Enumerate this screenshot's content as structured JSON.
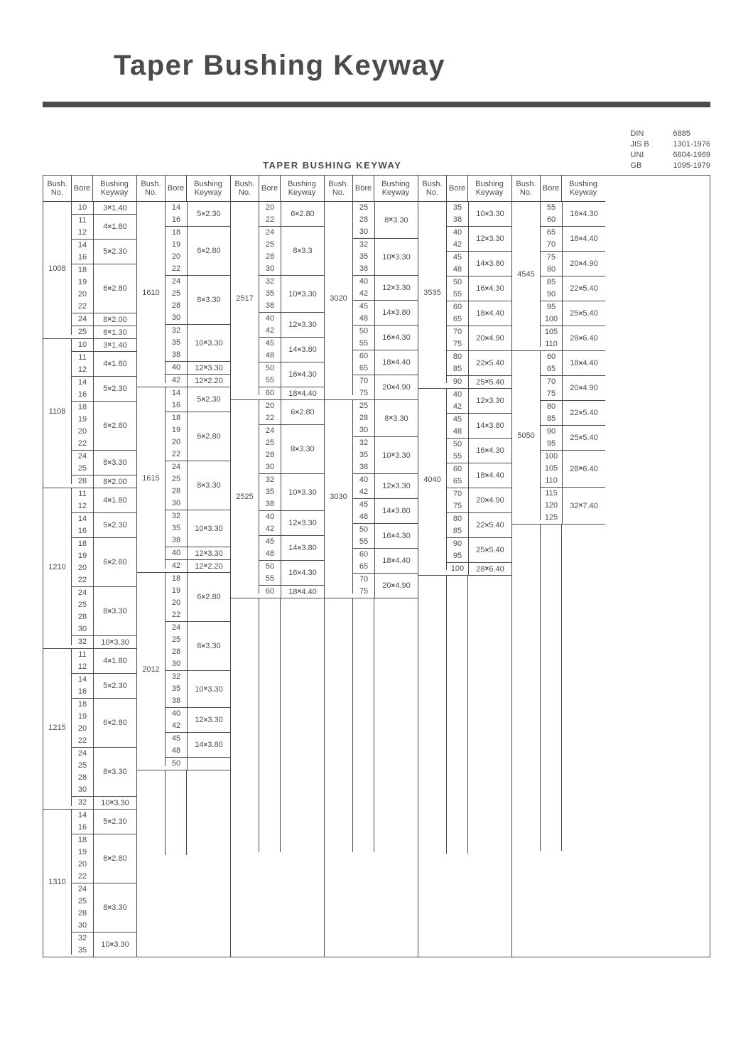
{
  "title": "Taper Bushing Keyway",
  "subtitle": "TAPER BUSHING KEYWAY",
  "standards": [
    {
      "label": "DIN",
      "value": "6885"
    },
    {
      "label": "JIS B",
      "value": "1301-1976"
    },
    {
      "label": "UNI",
      "value": "6604-1969"
    },
    {
      "label": "GB",
      "value": "1095-1979"
    }
  ],
  "headers": {
    "bush": "Bush.\nNo.",
    "bore": "Bore",
    "key": "Bushing\nKeyway"
  },
  "columns": [
    [
      {
        "bush": "1008",
        "subs": [
          {
            "bores": [
              "10"
            ],
            "key": "3×1.40"
          },
          {
            "bores": [
              "11",
              "12"
            ],
            "key": "4×1.80"
          },
          {
            "bores": [
              "14",
              "16"
            ],
            "key": "5×2.30"
          },
          {
            "bores": [
              "18",
              "19",
              "20",
              "22"
            ],
            "key": "6×2.80"
          },
          {
            "bores": [
              "24"
            ],
            "key": "8×2.00"
          },
          {
            "bores": [
              "25"
            ],
            "key": "8×1.30"
          }
        ]
      },
      {
        "bush": "1108",
        "subs": [
          {
            "bores": [
              "10"
            ],
            "key": "3×1.40"
          },
          {
            "bores": [
              "11",
              "12"
            ],
            "key": "4×1.80"
          },
          {
            "bores": [
              "14",
              "16"
            ],
            "key": "5×2.30"
          },
          {
            "bores": [
              "18",
              "19",
              "20",
              "22"
            ],
            "key": "6×2.80"
          },
          {
            "bores": [
              "24",
              "25"
            ],
            "key": "8×3.30"
          },
          {
            "bores": [
              "28"
            ],
            "key": "8×2.00"
          }
        ]
      },
      {
        "bush": "1210",
        "subs": [
          {
            "bores": [
              "11",
              "12"
            ],
            "key": "4×1.80"
          },
          {
            "bores": [
              "14",
              "16"
            ],
            "key": "5×2.30"
          },
          {
            "bores": [
              "18",
              "19",
              "20",
              "22"
            ],
            "key": "6×2.80"
          },
          {
            "bores": [
              "24",
              "25",
              "28",
              "30"
            ],
            "key": "8×3.30"
          },
          {
            "bores": [
              "32"
            ],
            "key": "10×3.30"
          }
        ]
      },
      {
        "bush": "1215",
        "subs": [
          {
            "bores": [
              "11",
              "12"
            ],
            "key": "4×1.80"
          },
          {
            "bores": [
              "14",
              "16"
            ],
            "key": "5×2.30"
          },
          {
            "bores": [
              "18",
              "19",
              "20",
              "22"
            ],
            "key": "6×2.80"
          },
          {
            "bores": [
              "24",
              "25",
              "28",
              "30"
            ],
            "key": "8×3.30"
          },
          {
            "bores": [
              "32"
            ],
            "key": "10×3.30"
          }
        ]
      },
      {
        "bush": "1310",
        "subs": [
          {
            "bores": [
              "14",
              "16"
            ],
            "key": "5×2.30"
          },
          {
            "bores": [
              "18",
              "19",
              "20",
              "22"
            ],
            "key": "6×2.80"
          },
          {
            "bores": [
              "24",
              "25",
              "28",
              "30"
            ],
            "key": "8×3.30"
          },
          {
            "bores": [
              "32",
              "35"
            ],
            "key": "10×3.30"
          }
        ]
      }
    ],
    [
      {
        "bush": "1610",
        "subs": [
          {
            "bores": [
              "14",
              "16"
            ],
            "key": "5×2.30"
          },
          {
            "bores": [
              "18",
              "19",
              "20",
              "22"
            ],
            "key": "6×2.80"
          },
          {
            "bores": [
              "24",
              "25",
              "28",
              "30"
            ],
            "key": "8×3.30"
          },
          {
            "bores": [
              "32",
              "35",
              "38"
            ],
            "key": "10×3.30"
          },
          {
            "bores": [
              "40"
            ],
            "key": "12×3.30"
          },
          {
            "bores": [
              "42"
            ],
            "key": "12×2.20"
          }
        ]
      },
      {
        "bush": "1615",
        "subs": [
          {
            "bores": [
              "14",
              "16"
            ],
            "key": "5×2.30"
          },
          {
            "bores": [
              "18",
              "19",
              "20",
              "22"
            ],
            "key": "6×2.80"
          },
          {
            "bores": [
              "24",
              "25",
              "28",
              "30"
            ],
            "key": "8×3.30"
          },
          {
            "bores": [
              "32",
              "35",
              "38"
            ],
            "key": "10×3.30"
          },
          {
            "bores": [
              "40"
            ],
            "key": "12×3.30"
          },
          {
            "bores": [
              "42"
            ],
            "key": "12×2.20"
          }
        ]
      },
      {
        "bush": "2012",
        "subs": [
          {
            "bores": [
              "18",
              "19",
              "20",
              "22"
            ],
            "key": "6×2.80"
          },
          {
            "bores": [
              "24",
              "25",
              "28",
              "30"
            ],
            "key": "8×3.30"
          },
          {
            "bores": [
              "32",
              "35",
              "38"
            ],
            "key": "10×3.30"
          },
          {
            "bores": [
              "40",
              "42"
            ],
            "key": "12×3.30"
          },
          {
            "bores": [
              "45",
              "48"
            ],
            "key": "14×3.80"
          },
          {
            "bores": [
              "50"
            ],
            "key": ""
          }
        ]
      }
    ],
    [
      {
        "bush": "2517",
        "subs": [
          {
            "bores": [
              "20",
              "22"
            ],
            "key": "6×2.80"
          },
          {
            "bores": [
              "24",
              "25",
              "28",
              "30"
            ],
            "key": "8×3.3"
          },
          {
            "bores": [
              "32",
              "35",
              "38"
            ],
            "key": "10×3.30"
          },
          {
            "bores": [
              "40",
              "42"
            ],
            "key": "12×3.30"
          },
          {
            "bores": [
              "45",
              "48"
            ],
            "key": "14×3.80"
          },
          {
            "bores": [
              "50",
              "55"
            ],
            "key": "16×4.30"
          },
          {
            "bores": [
              "60"
            ],
            "key": "18×4.40"
          }
        ]
      },
      {
        "bush": "2525",
        "subs": [
          {
            "bores": [
              "20",
              "22"
            ],
            "key": "6×2.80"
          },
          {
            "bores": [
              "24",
              "25",
              "28",
              "30"
            ],
            "key": "8×3.30"
          },
          {
            "bores": [
              "32",
              "35",
              "38"
            ],
            "key": "10×3.30"
          },
          {
            "bores": [
              "40",
              "42"
            ],
            "key": "12×3.30"
          },
          {
            "bores": [
              "45",
              "48"
            ],
            "key": "14×3.80"
          },
          {
            "bores": [
              "50",
              "55"
            ],
            "key": "16×4.30"
          },
          {
            "bores": [
              "60"
            ],
            "key": "18×4.40"
          }
        ]
      }
    ],
    [
      {
        "bush": "3020",
        "subs": [
          {
            "bores": [
              "25",
              "28",
              "30"
            ],
            "key": "8×3.30"
          },
          {
            "bores": [
              "32",
              "35",
              "38"
            ],
            "key": "10×3.30"
          },
          {
            "bores": [
              "40",
              "42"
            ],
            "key": "12×3.30"
          },
          {
            "bores": [
              "45",
              "48"
            ],
            "key": "14×3.80"
          },
          {
            "bores": [
              "50",
              "55"
            ],
            "key": "16×4.30"
          },
          {
            "bores": [
              "60",
              "65"
            ],
            "key": "18×4.40"
          },
          {
            "bores": [
              "70",
              "75"
            ],
            "key": "20×4.90"
          }
        ]
      },
      {
        "bush": "3030",
        "subs": [
          {
            "bores": [
              "25",
              "28",
              "30"
            ],
            "key": "8×3.30"
          },
          {
            "bores": [
              "32",
              "35",
              "38"
            ],
            "key": "10×3.30"
          },
          {
            "bores": [
              "40",
              "42"
            ],
            "key": "12×3.30"
          },
          {
            "bores": [
              "45",
              "48"
            ],
            "key": "14×3.80"
          },
          {
            "bores": [
              "50",
              "55"
            ],
            "key": "16×4.30"
          },
          {
            "bores": [
              "60",
              "65"
            ],
            "key": "18×4.40"
          },
          {
            "bores": [
              "70",
              "75"
            ],
            "key": "20×4.90"
          }
        ]
      }
    ],
    [
      {
        "bush": "3535",
        "subs": [
          {
            "bores": [
              "35",
              "38"
            ],
            "key": "10×3.30"
          },
          {
            "bores": [
              "40",
              "42"
            ],
            "key": "12×3.30"
          },
          {
            "bores": [
              "45",
              "48"
            ],
            "key": "14×3.80"
          },
          {
            "bores": [
              "50",
              "55"
            ],
            "key": "16×4.30"
          },
          {
            "bores": [
              "60",
              "65"
            ],
            "key": "18×4.40"
          },
          {
            "bores": [
              "70",
              "75"
            ],
            "key": "20×4.90"
          },
          {
            "bores": [
              "80",
              "85"
            ],
            "key": "22×5.40"
          },
          {
            "bores": [
              "90"
            ],
            "key": "25×5.40"
          }
        ]
      },
      {
        "bush": "4040",
        "subs": [
          {
            "bores": [
              "40",
              "42"
            ],
            "key": "12×3.30"
          },
          {
            "bores": [
              "45",
              "48"
            ],
            "key": "14×3.80"
          },
          {
            "bores": [
              "50",
              "55"
            ],
            "key": "16×4.30"
          },
          {
            "bores": [
              "60",
              "65"
            ],
            "key": "18×4.40"
          },
          {
            "bores": [
              "70",
              "75"
            ],
            "key": "20×4.90"
          },
          {
            "bores": [
              "80",
              "85"
            ],
            "key": "22×5.40"
          },
          {
            "bores": [
              "90",
              "95"
            ],
            "key": "25×5.40"
          },
          {
            "bores": [
              "100"
            ],
            "key": "28×6.40"
          }
        ]
      }
    ],
    [
      {
        "bush": "4545",
        "subs": [
          {
            "bores": [
              "55",
              "60"
            ],
            "key": "16×4.30"
          },
          {
            "bores": [
              "65",
              "70"
            ],
            "key": "18×4.40"
          },
          {
            "bores": [
              "75",
              "80"
            ],
            "key": "20×4.90"
          },
          {
            "bores": [
              "85",
              "90"
            ],
            "key": "22×5.40"
          },
          {
            "bores": [
              "95",
              "100"
            ],
            "key": "25×5.40"
          },
          {
            "bores": [
              "105",
              "110"
            ],
            "key": "28×6.40"
          }
        ]
      },
      {
        "bush": "5050",
        "subs": [
          {
            "bores": [
              "60",
              "65"
            ],
            "key": "18×4.40"
          },
          {
            "bores": [
              "70",
              "75"
            ],
            "key": "20×4.90"
          },
          {
            "bores": [
              "80",
              "85"
            ],
            "key": "22×5.40"
          },
          {
            "bores": [
              "90",
              "95"
            ],
            "key": "25×5.40"
          },
          {
            "bores": [
              "100",
              "105",
              "110"
            ],
            "key": "28×6.40"
          },
          {
            "bores": [
              "115",
              "120",
              "125"
            ],
            "key": "32×7.40"
          }
        ]
      }
    ]
  ],
  "pad_total_rows": 53
}
